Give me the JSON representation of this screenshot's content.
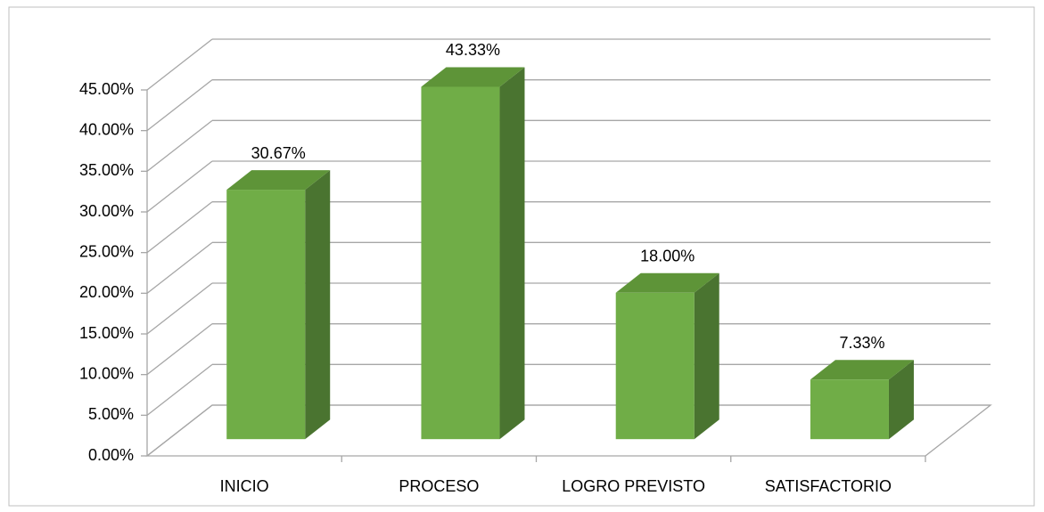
{
  "chart_data": {
    "type": "bar3d",
    "categories": [
      "INICIO",
      "PROCESO",
      "LOGRO PREVISTO",
      "SATISFACTORIO"
    ],
    "values": [
      30.67,
      43.33,
      18.0,
      7.33
    ],
    "value_labels": [
      "30.67%",
      "43.33%",
      "18.00%",
      "7.33%"
    ],
    "color": "#70ad47",
    "ylim": [
      0,
      45
    ],
    "yticks": [
      {
        "value": 0,
        "label": "0.00%"
      },
      {
        "value": 5,
        "label": "5.00%"
      },
      {
        "value": 10,
        "label": "10.00%"
      },
      {
        "value": 15,
        "label": "15.00%"
      },
      {
        "value": 20,
        "label": "20.00%"
      },
      {
        "value": 25,
        "label": "25.00%"
      },
      {
        "value": 30,
        "label": "30.00%"
      },
      {
        "value": 35,
        "label": "35.00%"
      },
      {
        "value": 40,
        "label": "40.00%"
      },
      {
        "value": 45,
        "label": "45.00%"
      }
    ],
    "grid": true
  }
}
